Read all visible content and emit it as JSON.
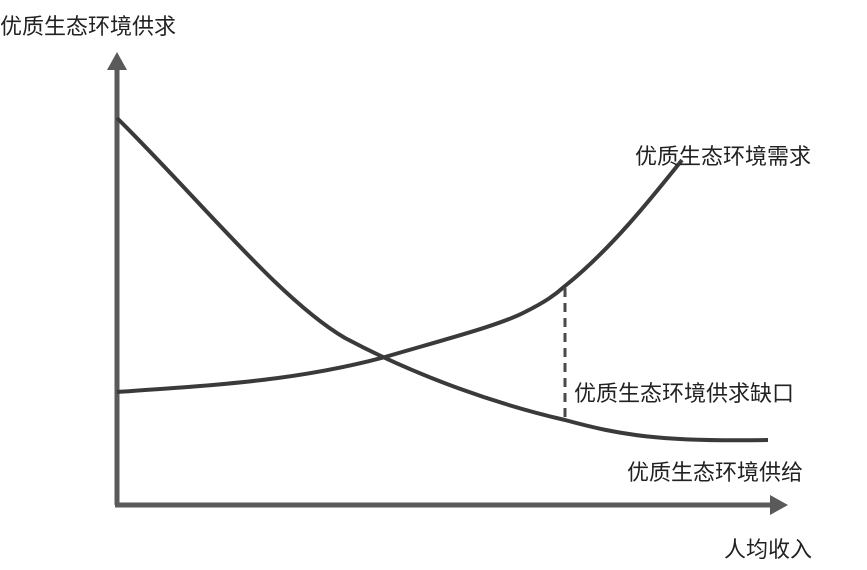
{
  "axes": {
    "y_label": "优质生态环境供求",
    "x_label": "人均收入"
  },
  "curves": {
    "demand_label": "优质生态环境需求",
    "supply_label": "优质生态环境供给",
    "gap_label": "优质生态环境供求缺口"
  },
  "colors": {
    "axis": "#5a5a5a",
    "curve": "#3a3a3a",
    "text": "#222222"
  }
}
